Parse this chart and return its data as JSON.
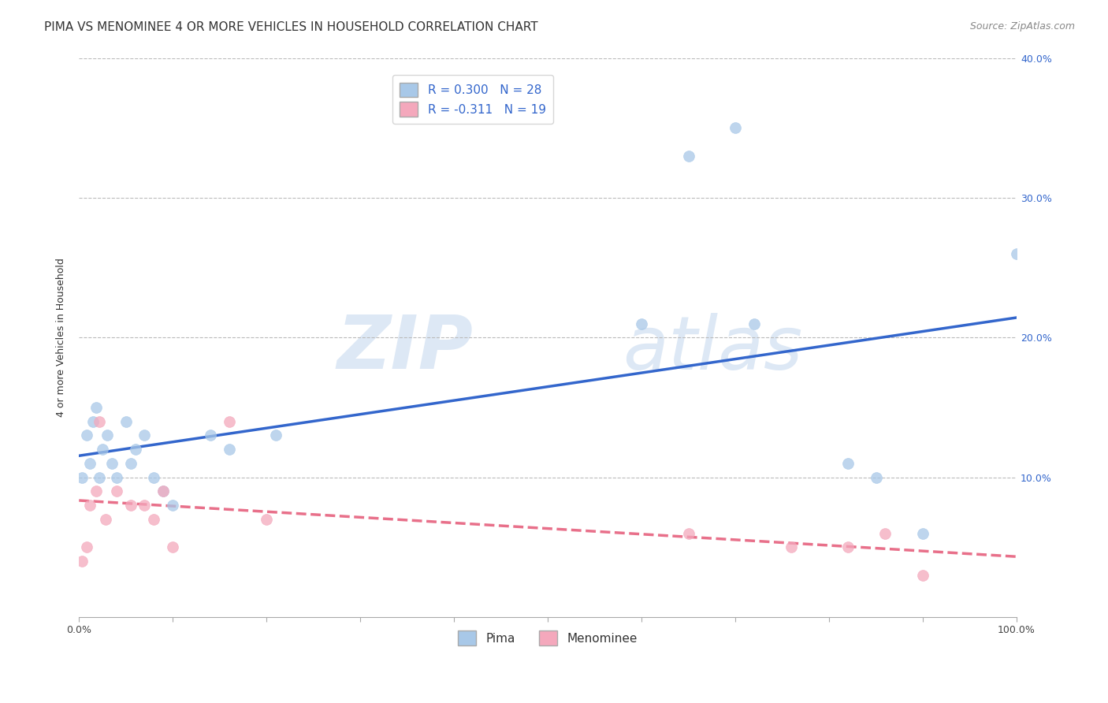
{
  "title": "PIMA VS MENOMINEE 4 OR MORE VEHICLES IN HOUSEHOLD CORRELATION CHART",
  "source": "Source: ZipAtlas.com",
  "ylabel": "4 or more Vehicles in Household",
  "pima_R": 0.3,
  "pima_N": 28,
  "menominee_R": -0.311,
  "menominee_N": 19,
  "pima_color": "#a8c8e8",
  "menominee_color": "#f4a8bc",
  "pima_line_color": "#3366cc",
  "menominee_line_color": "#e8708a",
  "pima_x": [
    0.3,
    0.8,
    1.2,
    1.5,
    1.8,
    2.2,
    2.5,
    3.0,
    3.5,
    4.0,
    5.0,
    5.5,
    6.0,
    7.0,
    8.0,
    9.0,
    10.0,
    14.0,
    16.0,
    21.0,
    60.0,
    65.0,
    70.0,
    72.0,
    82.0,
    85.0,
    90.0,
    100.0
  ],
  "pima_y": [
    10.0,
    13.0,
    11.0,
    14.0,
    15.0,
    10.0,
    12.0,
    13.0,
    11.0,
    10.0,
    14.0,
    11.0,
    12.0,
    13.0,
    10.0,
    9.0,
    8.0,
    13.0,
    12.0,
    13.0,
    21.0,
    33.0,
    35.0,
    21.0,
    11.0,
    10.0,
    6.0,
    26.0
  ],
  "menominee_x": [
    0.3,
    0.8,
    1.2,
    1.8,
    2.2,
    2.8,
    4.0,
    5.5,
    7.0,
    8.0,
    9.0,
    10.0,
    16.0,
    20.0,
    65.0,
    76.0,
    82.0,
    86.0,
    90.0
  ],
  "menominee_y": [
    4.0,
    5.0,
    8.0,
    9.0,
    14.0,
    7.0,
    9.0,
    8.0,
    8.0,
    7.0,
    9.0,
    5.0,
    14.0,
    7.0,
    6.0,
    5.0,
    5.0,
    6.0,
    3.0
  ],
  "xlim": [
    0.0,
    100.0
  ],
  "ylim": [
    0.0,
    40.0
  ],
  "yticks_right": [
    10.0,
    20.0,
    30.0,
    40.0
  ],
  "yticks_grid": [
    10.0,
    20.0,
    30.0,
    40.0
  ],
  "xtick_minor": [
    0.0,
    10.0,
    20.0,
    30.0,
    40.0,
    50.0,
    60.0,
    70.0,
    80.0,
    90.0,
    100.0
  ],
  "background_color": "#ffffff",
  "watermark_zip": "ZIP",
  "watermark_atlas": "atlas",
  "watermark_color": "#dde8f5",
  "title_fontsize": 11,
  "axis_label_fontsize": 9,
  "tick_fontsize": 9,
  "legend_fontsize": 11,
  "marker_size": 100,
  "right_tick_color": "#3366cc"
}
